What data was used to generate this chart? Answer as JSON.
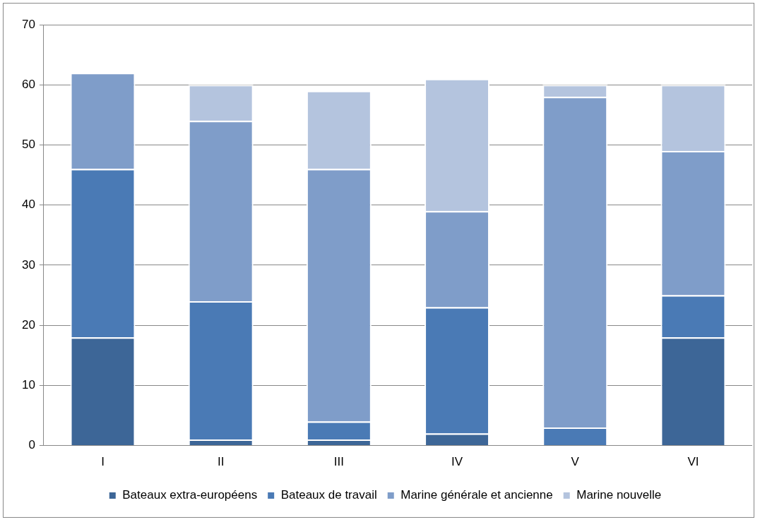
{
  "chart_data": {
    "type": "bar",
    "stacked": true,
    "categories": [
      "I",
      "II",
      "III",
      "IV",
      "V",
      "VI"
    ],
    "series": [
      {
        "name": "Bateaux extra-européens",
        "color": "#3d6697",
        "values": [
          18,
          1,
          1,
          2,
          0,
          18
        ]
      },
      {
        "name": "Bateaux de travail",
        "color": "#4a7ab5",
        "values": [
          28,
          23,
          3,
          21,
          3,
          7
        ]
      },
      {
        "name": "Marine générale et ancienne",
        "color": "#7f9dc9",
        "values": [
          16,
          30,
          42,
          16,
          55,
          24
        ]
      },
      {
        "name": "Marine nouvelle",
        "color": "#b4c4de",
        "values": [
          0,
          6,
          13,
          22,
          2,
          11
        ]
      }
    ],
    "ylim": [
      0,
      70
    ],
    "yticks": [
      0,
      10,
      20,
      30,
      40,
      50,
      60,
      70
    ],
    "grid": "y",
    "legend": "bottom"
  }
}
